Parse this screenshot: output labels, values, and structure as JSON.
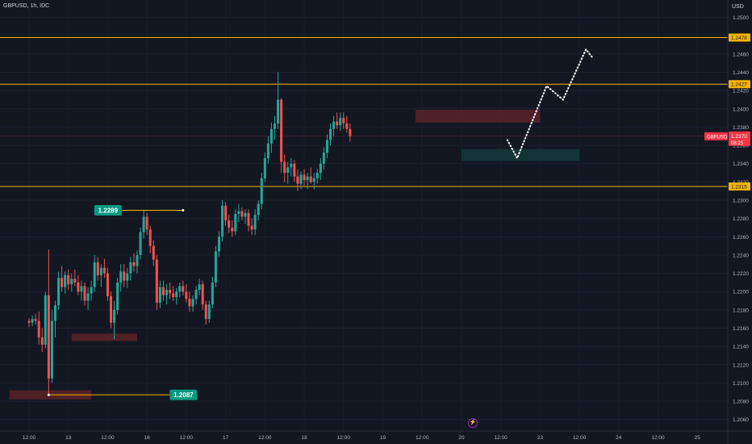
{
  "header": {
    "title": "GBPUSD, 1h, IDC",
    "currency": "USD"
  },
  "icons": {
    "event": "lightning-bolt-icon"
  },
  "colors": {
    "background": "#131722",
    "bull": "#26a69a",
    "bear": "#ef5350",
    "level": "#f5b400",
    "price_tag": "#f23645",
    "callout": "#089981",
    "supply_zone": "#5b2328",
    "demand_zone": "#143a3a"
  },
  "chart_data": {
    "type": "candlestick",
    "symbol": "GBPUSD",
    "timeframe": "1h",
    "ylim": [
      1.2058,
      1.2512
    ],
    "y_ticks": [
      "1.2500",
      "1.2460",
      "1.2440",
      "1.2420",
      "1.2400",
      "1.2380",
      "1.2360",
      "1.2340",
      "1.2320",
      "1.2300",
      "1.2280",
      "1.2260",
      "1.2240",
      "1.2220",
      "1.2200",
      "1.2180",
      "1.2160",
      "1.2140",
      "1.2120",
      "1.2100",
      "1.2080",
      "1.2060"
    ],
    "x_ticks": [
      {
        "label": "12:00",
        "i": 0
      },
      {
        "label": "13",
        "i": 12
      },
      {
        "label": "12:00",
        "i": 24
      },
      {
        "label": "16",
        "i": 36
      },
      {
        "label": "12:00",
        "i": 48
      },
      {
        "label": "17",
        "i": 60
      },
      {
        "label": "12:00",
        "i": 72
      },
      {
        "label": "18",
        "i": 84
      },
      {
        "label": "12:00",
        "i": 96
      },
      {
        "label": "19",
        "i": 108
      },
      {
        "label": "12:00",
        "i": 120
      },
      {
        "label": "20",
        "i": 132
      },
      {
        "label": "12:00",
        "i": 144
      },
      {
        "label": "23",
        "i": 156
      },
      {
        "label": "12:00",
        "i": 168
      },
      {
        "label": "24",
        "i": 180
      },
      {
        "label": "12:00",
        "i": 192
      },
      {
        "label": "25",
        "i": 204
      },
      {
        "label": "12:00",
        "i": 216
      }
    ],
    "horizontal_levels": [
      {
        "price": 1.2478,
        "label": "1.2478"
      },
      {
        "price": 1.2427,
        "label": "1.2427"
      },
      {
        "price": 1.2315,
        "label": "1.2315"
      }
    ],
    "current_price": {
      "price": 1.237,
      "label": "1.2370",
      "countdown": "08:25",
      "symbol_tag": "GBPUSD"
    },
    "callouts": [
      {
        "label": "1.2289",
        "price": 1.2289,
        "i": 47
      },
      {
        "label": "1.2087",
        "price": 1.2087,
        "i": 6
      }
    ],
    "zones": [
      {
        "type": "supply",
        "i_from": -6,
        "i_to": 19,
        "high": 1.2092,
        "low": 1.2082
      },
      {
        "type": "supply",
        "i_from": 13,
        "i_to": 33,
        "high": 1.2154,
        "low": 1.2146
      },
      {
        "type": "supply",
        "i_from": 118,
        "i_to": 156,
        "high": 1.2399,
        "low": 1.2385
      },
      {
        "type": "demand",
        "i_from": 132,
        "i_to": 168,
        "high": 1.2356,
        "low": 1.2343
      }
    ],
    "projection": [
      {
        "i": 146,
        "price": 1.2366
      },
      {
        "i": 149,
        "price": 1.2346
      },
      {
        "i": 158,
        "price": 1.2425
      },
      {
        "i": 163,
        "price": 1.241
      },
      {
        "i": 170,
        "price": 1.2465
      },
      {
        "i": 172,
        "price": 1.2456
      }
    ],
    "candles": [
      [
        1.2168,
        1.2171,
        1.2161,
        1.2166
      ],
      [
        1.2166,
        1.2174,
        1.2162,
        1.217
      ],
      [
        1.217,
        1.2176,
        1.2164,
        1.2168
      ],
      [
        1.2168,
        1.2178,
        1.2142,
        1.215
      ],
      [
        1.215,
        1.216,
        1.2134,
        1.2142
      ],
      [
        1.2142,
        1.22,
        1.2138,
        1.2196
      ],
      [
        1.2196,
        1.2246,
        1.2087,
        1.2105
      ],
      [
        1.2105,
        1.218,
        1.21,
        1.2168
      ],
      [
        1.2168,
        1.219,
        1.215,
        1.2185
      ],
      [
        1.2185,
        1.2222,
        1.218,
        1.2215
      ],
      [
        1.2215,
        1.2228,
        1.22,
        1.2205
      ],
      [
        1.2205,
        1.2222,
        1.2198,
        1.2218
      ],
      [
        1.2218,
        1.2224,
        1.2202,
        1.2208
      ],
      [
        1.2208,
        1.222,
        1.22,
        1.2214
      ],
      [
        1.2214,
        1.2224,
        1.2206,
        1.221
      ],
      [
        1.221,
        1.2218,
        1.2196,
        1.22
      ],
      [
        1.22,
        1.2212,
        1.219,
        1.2206
      ],
      [
        1.2206,
        1.221,
        1.2185,
        1.219
      ],
      [
        1.219,
        1.2205,
        1.218,
        1.2198
      ],
      [
        1.2198,
        1.2212,
        1.219,
        1.2205
      ],
      [
        1.2205,
        1.224,
        1.22,
        1.2232
      ],
      [
        1.2232,
        1.2238,
        1.2212,
        1.2218
      ],
      [
        1.2218,
        1.223,
        1.2205,
        1.2226
      ],
      [
        1.2226,
        1.2236,
        1.2215,
        1.222
      ],
      [
        1.222,
        1.2226,
        1.219,
        1.2195
      ],
      [
        1.2195,
        1.22,
        1.216,
        1.2166
      ],
      [
        1.2166,
        1.219,
        1.2148,
        1.218
      ],
      [
        1.218,
        1.2215,
        1.2175,
        1.221
      ],
      [
        1.221,
        1.223,
        1.22,
        1.2222
      ],
      [
        1.2222,
        1.223,
        1.2205,
        1.2212
      ],
      [
        1.2212,
        1.2226,
        1.2204,
        1.222
      ],
      [
        1.222,
        1.2238,
        1.2212,
        1.2232
      ],
      [
        1.2232,
        1.2242,
        1.2222,
        1.2228
      ],
      [
        1.2228,
        1.2245,
        1.222,
        1.224
      ],
      [
        1.224,
        1.227,
        1.2235,
        1.2265
      ],
      [
        1.2265,
        1.2289,
        1.2258,
        1.2282
      ],
      [
        1.2282,
        1.2286,
        1.2262,
        1.2268
      ],
      [
        1.2268,
        1.2272,
        1.2242,
        1.225
      ],
      [
        1.225,
        1.2256,
        1.2228,
        1.2235
      ],
      [
        1.2235,
        1.224,
        1.218,
        1.2188
      ],
      [
        1.2188,
        1.2212,
        1.2182,
        1.2205
      ],
      [
        1.2205,
        1.2212,
        1.219,
        1.2196
      ],
      [
        1.2196,
        1.2208,
        1.2186,
        1.2202
      ],
      [
        1.2202,
        1.221,
        1.2192,
        1.2198
      ],
      [
        1.2198,
        1.2206,
        1.219,
        1.2194
      ],
      [
        1.2194,
        1.2204,
        1.2186,
        1.22
      ],
      [
        1.22,
        1.221,
        1.2194,
        1.2206
      ],
      [
        1.2206,
        1.2212,
        1.2196,
        1.22
      ],
      [
        1.22,
        1.2208,
        1.2188,
        1.2192
      ],
      [
        1.2192,
        1.22,
        1.2178,
        1.2184
      ],
      [
        1.2184,
        1.2196,
        1.2178,
        1.2192
      ],
      [
        1.2192,
        1.2206,
        1.2186,
        1.2202
      ],
      [
        1.2202,
        1.2214,
        1.2196,
        1.2208
      ],
      [
        1.2208,
        1.2212,
        1.218,
        1.2186
      ],
      [
        1.2186,
        1.219,
        1.2164,
        1.217
      ],
      [
        1.217,
        1.219,
        1.2166,
        1.2186
      ],
      [
        1.2186,
        1.2216,
        1.2182,
        1.221
      ],
      [
        1.221,
        1.225,
        1.2205,
        1.2244
      ],
      [
        1.2244,
        1.2266,
        1.2238,
        1.226
      ],
      [
        1.226,
        1.23,
        1.2255,
        1.2294
      ],
      [
        1.2294,
        1.2298,
        1.2272,
        1.2278
      ],
      [
        1.2278,
        1.2284,
        1.2264,
        1.227
      ],
      [
        1.227,
        1.2278,
        1.226,
        1.2266
      ],
      [
        1.2266,
        1.229,
        1.2262,
        1.2285
      ],
      [
        1.2285,
        1.2296,
        1.2276,
        1.2288
      ],
      [
        1.2288,
        1.2292,
        1.2278,
        1.2282
      ],
      [
        1.2282,
        1.229,
        1.2274,
        1.2286
      ],
      [
        1.2286,
        1.229,
        1.2266,
        1.2272
      ],
      [
        1.2272,
        1.228,
        1.2262,
        1.2268
      ],
      [
        1.2268,
        1.229,
        1.2262,
        1.2284
      ],
      [
        1.2284,
        1.23,
        1.2278,
        1.2296
      ],
      [
        1.2296,
        1.233,
        1.229,
        1.2324
      ],
      [
        1.2324,
        1.2352,
        1.232,
        1.2346
      ],
      [
        1.2346,
        1.237,
        1.234,
        1.2362
      ],
      [
        1.2362,
        1.2385,
        1.2352,
        1.2378
      ],
      [
        1.2378,
        1.2392,
        1.2366,
        1.2384
      ],
      [
        1.2384,
        1.244,
        1.2378,
        1.241
      ],
      [
        1.241,
        1.2412,
        1.233,
        1.2342
      ],
      [
        1.2342,
        1.235,
        1.232,
        1.233
      ],
      [
        1.233,
        1.2342,
        1.2318,
        1.2336
      ],
      [
        1.2336,
        1.2346,
        1.2326,
        1.234
      ],
      [
        1.234,
        1.2344,
        1.232,
        1.2326
      ],
      [
        1.2326,
        1.2334,
        1.231,
        1.2318
      ],
      [
        1.2318,
        1.2332,
        1.2312,
        1.2328
      ],
      [
        1.2328,
        1.2334,
        1.2316,
        1.2322
      ],
      [
        1.2322,
        1.233,
        1.2312,
        1.2326
      ],
      [
        1.2326,
        1.2336,
        1.2318,
        1.232
      ],
      [
        1.232,
        1.233,
        1.2312,
        1.2324
      ],
      [
        1.2324,
        1.2334,
        1.2318,
        1.233
      ],
      [
        1.233,
        1.2346,
        1.2322,
        1.234
      ],
      [
        1.234,
        1.2358,
        1.2334,
        1.2352
      ],
      [
        1.2352,
        1.2372,
        1.2346,
        1.2366
      ],
      [
        1.2366,
        1.2384,
        1.236,
        1.2378
      ],
      [
        1.2378,
        1.2392,
        1.237,
        1.2386
      ],
      [
        1.2386,
        1.2396,
        1.2378,
        1.2382
      ],
      [
        1.2382,
        1.2396,
        1.2376,
        1.239
      ],
      [
        1.239,
        1.2396,
        1.2378,
        1.2384
      ],
      [
        1.2384,
        1.2392,
        1.2374,
        1.2378
      ],
      [
        1.2378,
        1.2384,
        1.2364,
        1.237
      ]
    ]
  }
}
